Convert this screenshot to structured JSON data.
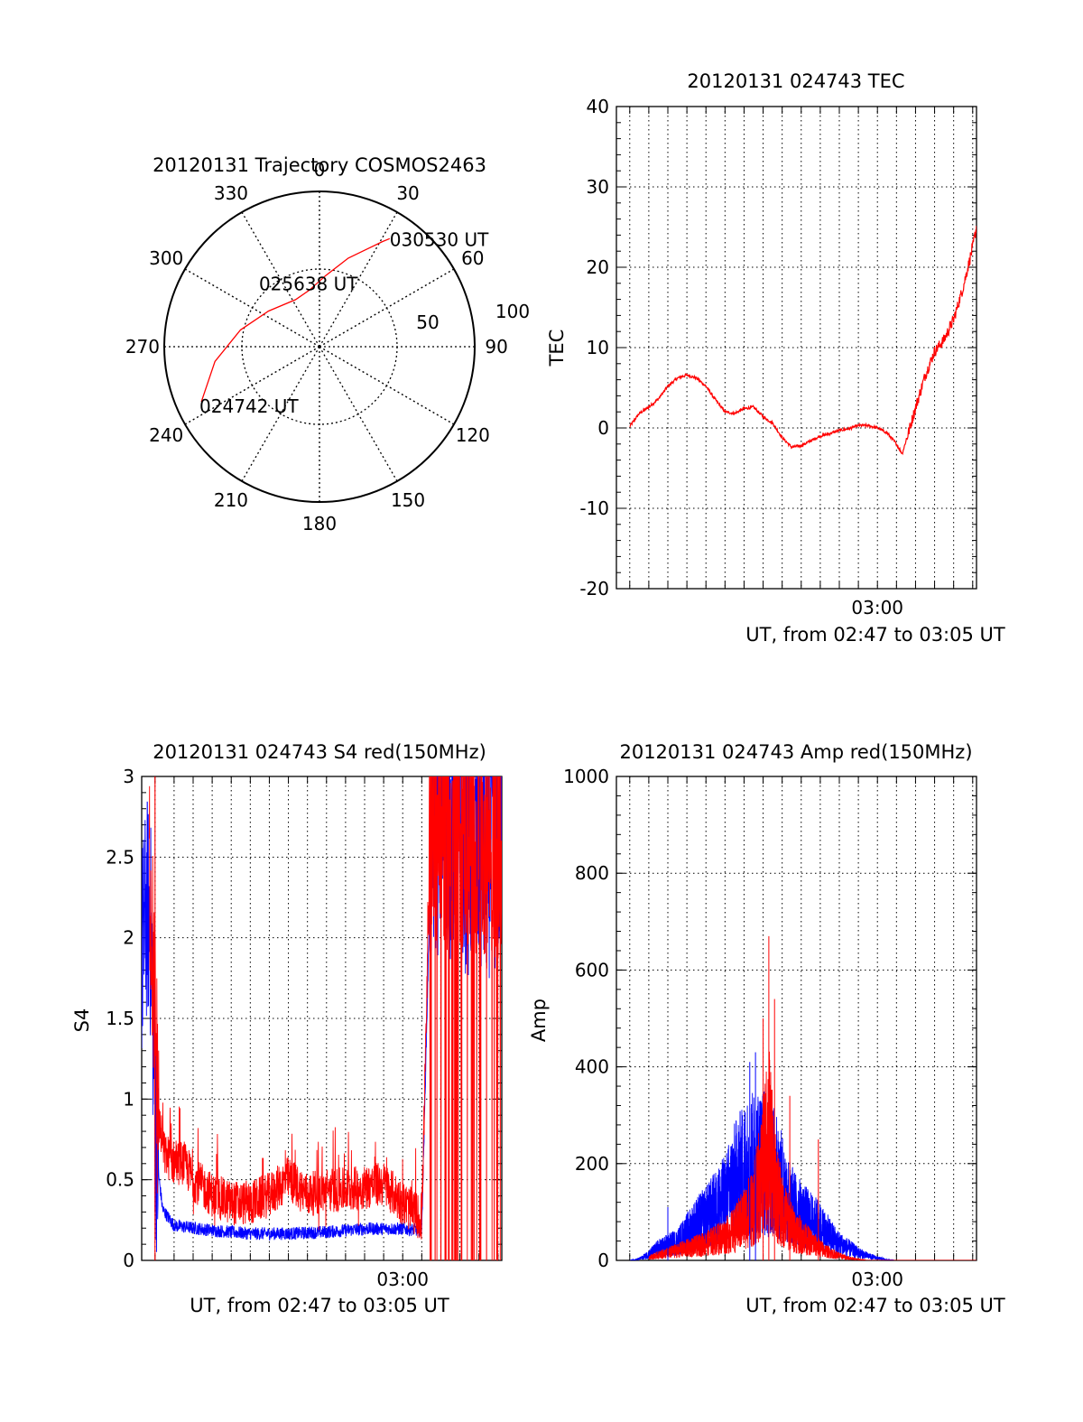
{
  "colors": {
    "red": "#ff0000",
    "blue": "#0000ff",
    "black": "#000000",
    "grid": "#000000"
  },
  "chart_data": [
    {
      "type": "polar",
      "title": "20120131 Trajectory COSMOS2463",
      "azimuth_labels": [
        "0",
        "30",
        "60",
        "90",
        "120",
        "150",
        "180",
        "210",
        "240",
        "270",
        "300",
        "330"
      ],
      "radial_labels": [
        "50",
        "100"
      ],
      "rlim": [
        0,
        100
      ],
      "series": [
        {
          "color": "#ff0000",
          "points": [
            {
              "az": 245,
              "r": 84
            },
            {
              "az": 262,
              "r": 68
            },
            {
              "az": 282,
              "r": 52
            },
            {
              "az": 305,
              "r": 40
            },
            {
              "az": 333,
              "r": 34
            },
            {
              "az": 350,
              "r": 37
            },
            {
              "az": 5,
              "r": 46
            },
            {
              "az": 18,
              "r": 60
            },
            {
              "az": 26,
              "r": 70
            },
            {
              "az": 31,
              "r": 79
            },
            {
              "az": 33,
              "r": 83
            }
          ]
        }
      ],
      "annotations": [
        {
          "text": "030530 UT",
          "az": 33,
          "r": 83
        },
        {
          "text": "025638 UT",
          "az": 350,
          "r": 37
        },
        {
          "text": "024742 UT",
          "az": 245,
          "r": 84
        }
      ]
    },
    {
      "type": "line",
      "title": "20120131 024743 TEC",
      "xlabel": "UT, from 02:47 to 03:05 UT",
      "ylabel": "TEC",
      "xtick_labels": [
        {
          "t": 13.0,
          "label": "03:00"
        }
      ],
      "xlim": [
        -0.7,
        18.2
      ],
      "ylim": [
        -20,
        40
      ],
      "yticks": [
        -20,
        -10,
        0,
        10,
        20,
        30,
        40
      ],
      "grid": true,
      "series": [
        {
          "color": "#ff0000",
          "points": [
            [
              0.0,
              0.2
            ],
            [
              0.5,
              1.8
            ],
            [
              1.0,
              2.6
            ],
            [
              1.5,
              3.6
            ],
            [
              2.0,
              5.2
            ],
            [
              2.5,
              6.2
            ],
            [
              3.0,
              6.6
            ],
            [
              3.5,
              6.2
            ],
            [
              4.0,
              5.2
            ],
            [
              4.5,
              3.5
            ],
            [
              5.0,
              2.0
            ],
            [
              5.5,
              1.8
            ],
            [
              6.0,
              2.4
            ],
            [
              6.5,
              2.6
            ],
            [
              7.0,
              1.4
            ],
            [
              7.5,
              0.6
            ],
            [
              8.0,
              -1.2
            ],
            [
              8.5,
              -2.4
            ],
            [
              9.0,
              -2.2
            ],
            [
              9.5,
              -1.6
            ],
            [
              10.0,
              -1.0
            ],
            [
              10.5,
              -0.7
            ],
            [
              11.0,
              -0.3
            ],
            [
              11.5,
              -0.1
            ],
            [
              12.0,
              0.3
            ],
            [
              12.5,
              0.3
            ],
            [
              13.0,
              0.0
            ],
            [
              13.5,
              -0.6
            ],
            [
              14.0,
              -2.0
            ],
            [
              14.3,
              -3.2
            ],
            [
              14.6,
              -0.8
            ],
            [
              15.0,
              2.5
            ],
            [
              15.5,
              6.5
            ],
            [
              16.0,
              9.5
            ],
            [
              16.5,
              11.0
            ],
            [
              17.0,
              13.5
            ],
            [
              17.5,
              17.5
            ],
            [
              18.0,
              22.5
            ],
            [
              18.2,
              25.0
            ]
          ]
        }
      ]
    },
    {
      "type": "line",
      "title": "20120131 024743 S4 red(150MHz)",
      "xlabel": "UT, from 02:47 to 03:05 UT",
      "ylabel": "S4",
      "xtick_labels": [
        {
          "t": 13.0,
          "label": "03:00"
        }
      ],
      "xlim": [
        -0.7,
        18.2
      ],
      "ylim": [
        0,
        3
      ],
      "yticks": [
        0,
        0.5,
        1,
        1.5,
        2,
        2.5,
        3
      ],
      "ytick_labels": [
        "0",
        "0.5",
        "1",
        "1.5",
        "2",
        "2.5",
        "3"
      ],
      "grid": true,
      "series": [
        {
          "color": "#0000ff",
          "envelope": true,
          "points": [
            [
              -0.7,
              1.9
            ],
            [
              -0.4,
              2.2
            ],
            [
              -0.2,
              2.0
            ],
            [
              0.0,
              0.9
            ],
            [
              0.2,
              0.5
            ],
            [
              0.4,
              0.3
            ],
            [
              1.0,
              0.2
            ],
            [
              3.0,
              0.17
            ],
            [
              5.0,
              0.15
            ],
            [
              7.0,
              0.15
            ],
            [
              9.0,
              0.16
            ],
            [
              11.0,
              0.18
            ],
            [
              13.0,
              0.18
            ],
            [
              14.0,
              0.17
            ],
            [
              14.5,
              2.6
            ],
            [
              15.0,
              2.7
            ],
            [
              16.0,
              2.6
            ],
            [
              17.0,
              2.5
            ],
            [
              18.2,
              2.6
            ]
          ]
        },
        {
          "color": "#ff0000",
          "envelope": true,
          "points": [
            [
              -0.3,
              2.5
            ],
            [
              0.2,
              0.8
            ],
            [
              0.5,
              0.6
            ],
            [
              1.0,
              0.55
            ],
            [
              1.5,
              0.55
            ],
            [
              2.0,
              0.45
            ],
            [
              3.0,
              0.35
            ],
            [
              4.0,
              0.3
            ],
            [
              5.0,
              0.3
            ],
            [
              6.0,
              0.35
            ],
            [
              7.0,
              0.45
            ],
            [
              8.0,
              0.35
            ],
            [
              9.0,
              0.38
            ],
            [
              10.0,
              0.38
            ],
            [
              11.0,
              0.4
            ],
            [
              12.0,
              0.42
            ],
            [
              13.0,
              0.3
            ],
            [
              14.0,
              0.2
            ],
            [
              14.5,
              2.8
            ],
            [
              15.5,
              2.7
            ],
            [
              16.5,
              2.7
            ],
            [
              17.5,
              2.6
            ],
            [
              18.2,
              2.6
            ]
          ]
        }
      ]
    },
    {
      "type": "line",
      "title": "20120131 024743 Amp red(150MHz)",
      "xlabel": "UT, from 02:47 to 03:05 UT",
      "ylabel": "Amp",
      "xtick_labels": [
        {
          "t": 13.0,
          "label": "03:00"
        }
      ],
      "xlim": [
        -0.7,
        18.2
      ],
      "ylim": [
        0,
        1000
      ],
      "yticks": [
        0,
        200,
        400,
        600,
        800,
        1000
      ],
      "grid": true,
      "series": [
        {
          "color": "#0000ff",
          "envelope": true,
          "points": [
            [
              0.0,
              0
            ],
            [
              0.5,
              5
            ],
            [
              1.0,
              20
            ],
            [
              1.5,
              40
            ],
            [
              2.0,
              50
            ],
            [
              2.5,
              60
            ],
            [
              3.0,
              90
            ],
            [
              3.5,
              120
            ],
            [
              4.0,
              140
            ],
            [
              4.5,
              170
            ],
            [
              5.0,
              200
            ],
            [
              5.5,
              260
            ],
            [
              6.0,
              300
            ],
            [
              6.5,
              320
            ],
            [
              7.0,
              330
            ],
            [
              7.5,
              300
            ],
            [
              8.0,
              240
            ],
            [
              8.5,
              180
            ],
            [
              9.0,
              150
            ],
            [
              9.5,
              130
            ],
            [
              10.0,
              110
            ],
            [
              10.5,
              80
            ],
            [
              11.0,
              55
            ],
            [
              11.5,
              40
            ],
            [
              12.0,
              25
            ],
            [
              12.5,
              15
            ],
            [
              13.0,
              8
            ],
            [
              13.5,
              2
            ],
            [
              14.0,
              0
            ],
            [
              18.2,
              0
            ]
          ]
        },
        {
          "color": "#ff0000",
          "envelope": true,
          "points": [
            [
              1.0,
              10
            ],
            [
              2.0,
              25
            ],
            [
              3.0,
              40
            ],
            [
              4.0,
              55
            ],
            [
              5.0,
              80
            ],
            [
              5.5,
              100
            ],
            [
              6.0,
              140
            ],
            [
              6.5,
              180
            ],
            [
              7.0,
              300
            ],
            [
              7.3,
              420
            ],
            [
              7.6,
              250
            ],
            [
              8.0,
              160
            ],
            [
              8.5,
              110
            ],
            [
              9.0,
              80
            ],
            [
              9.5,
              60
            ],
            [
              10.0,
              40
            ],
            [
              10.5,
              25
            ],
            [
              11.0,
              15
            ],
            [
              11.5,
              8
            ],
            [
              12.0,
              3
            ],
            [
              12.5,
              0
            ],
            [
              18.2,
              0
            ]
          ]
        }
      ],
      "peaks": [
        {
          "t": 7.3,
          "value": 670,
          "color": "#ff0000"
        },
        {
          "t": 7.6,
          "value": 540,
          "color": "#ff0000"
        },
        {
          "t": 7.0,
          "value": 500,
          "color": "#ff0000"
        },
        {
          "t": 6.6,
          "value": 430,
          "color": "#0000ff"
        },
        {
          "t": 6.3,
          "value": 410,
          "color": "#0000ff"
        },
        {
          "t": 8.4,
          "value": 340,
          "color": "#ff0000"
        },
        {
          "t": 9.9,
          "value": 250,
          "color": "#ff0000"
        },
        {
          "t": 2.0,
          "value": 110,
          "color": "#0000ff"
        }
      ]
    }
  ]
}
